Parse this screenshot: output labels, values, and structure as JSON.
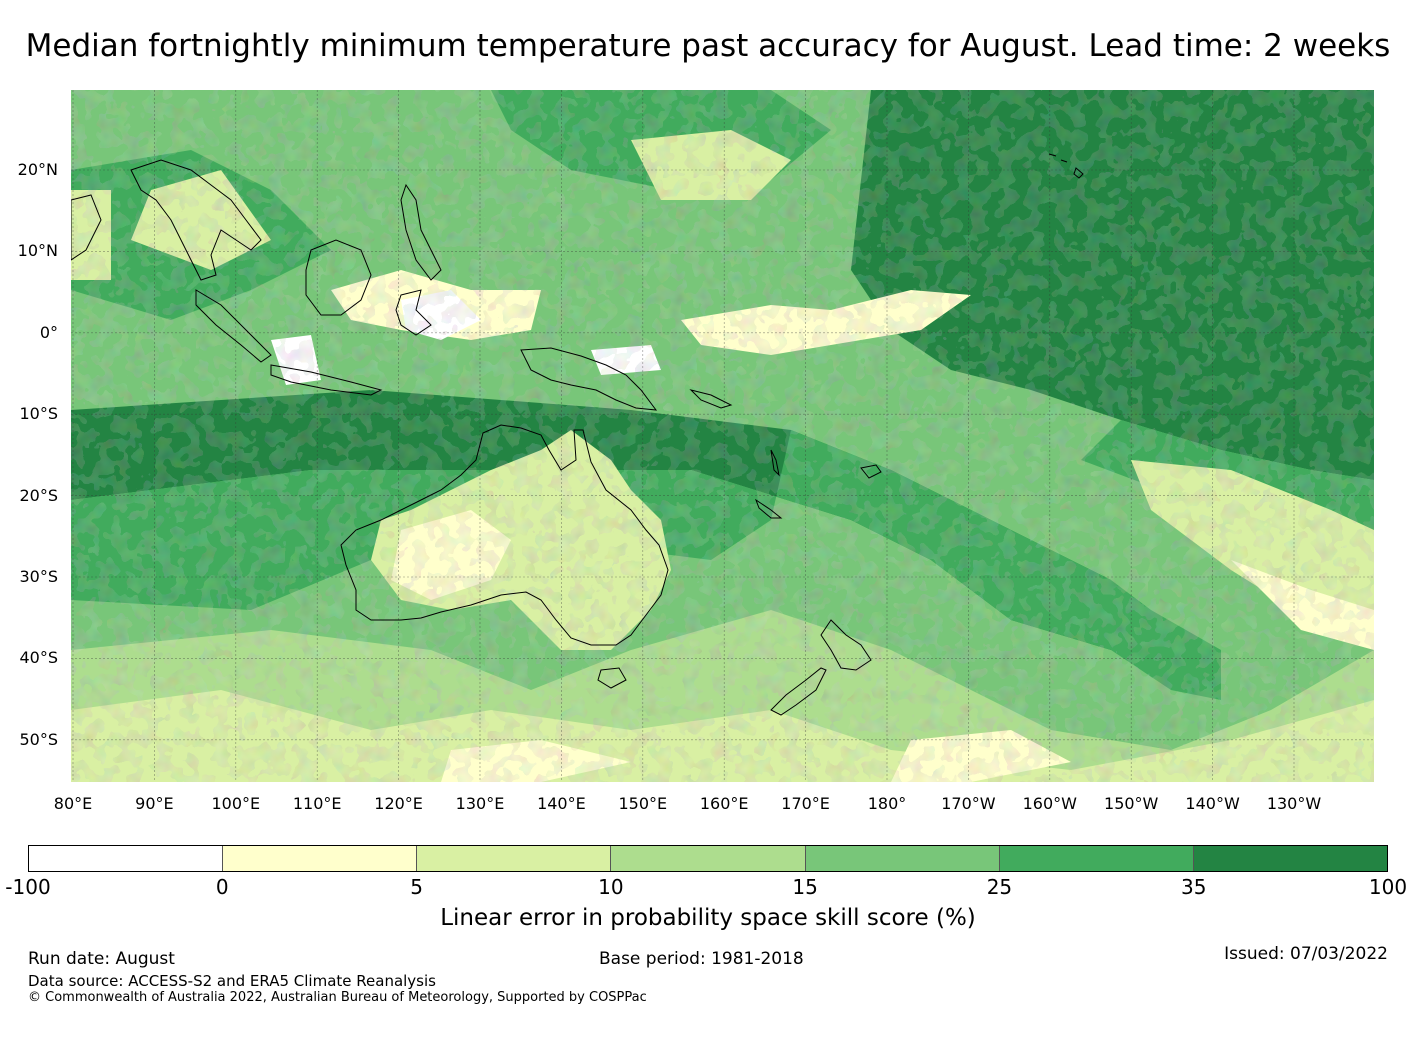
{
  "title": "Median fortnightly minimum temperature past accuracy for August. Lead time: 2 weeks",
  "map": {
    "lat_labels": [
      "20°N",
      "10°N",
      "0°",
      "10°S",
      "20°S",
      "30°S",
      "40°S",
      "50°S"
    ],
    "lon_labels": [
      "80°E",
      "90°E",
      "100°E",
      "110°E",
      "120°E",
      "130°E",
      "140°E",
      "150°E",
      "160°E",
      "170°E",
      "180°",
      "170°W",
      "160°W",
      "150°W",
      "140°W",
      "130°W"
    ],
    "land_outline_color": "#000000"
  },
  "colorbar": {
    "ticks": [
      "-100",
      "0",
      "5",
      "10",
      "15",
      "25",
      "35",
      "100"
    ],
    "colors": [
      "#ffffff",
      "#ffffcc",
      "#d9f0a3",
      "#addd8e",
      "#78c679",
      "#41ab5d",
      "#238443"
    ],
    "label": "Linear error in probability space skill score (%)"
  },
  "footer": {
    "run_date": "Run date: August",
    "base_period": "Base period: 1981-2018",
    "issued": "Issued: 07/03/2022",
    "data_source": "Data source: ACCESS-S2 and ERA5 Climate Reanalysis",
    "copyright": "© Commonwealth of Australia 2022, Australian Bureau of Meteorology, Supported by COSPPac"
  }
}
